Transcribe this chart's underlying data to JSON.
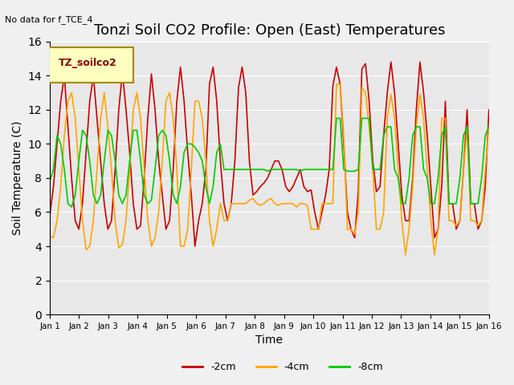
{
  "title": "Tonzi Soil CO2 Profile: Open (East) Temperatures",
  "subtitle": "No data for f_TCE_4",
  "xlabel": "Time",
  "ylabel": "Soil Temperature (C)",
  "ylim": [
    0,
    16
  ],
  "yticks": [
    0,
    2,
    4,
    6,
    8,
    10,
    12,
    14,
    16
  ],
  "xtick_labels": [
    "Jan 1",
    "Jan 2",
    "Jan 3",
    "Jan 4",
    "Jan 5",
    "Jan 6",
    "Jan 7",
    "Jan 8",
    "Jan 9",
    "Jan 10",
    "Jan 11",
    "Jan 12",
    "Jan 13",
    "Jan 14",
    "Jan 15",
    "Jan 16"
  ],
  "legend_label": "TZ_soilco2",
  "legend_entries": [
    "-2cm",
    "-4cm",
    "-8cm"
  ],
  "line_colors": [
    "#cc0000",
    "#ffa500",
    "#00cc00"
  ],
  "background_color": "#e8e8e8",
  "title_fontsize": 13,
  "label_fontsize": 10,
  "n_days": 15,
  "pts_per_day": 48,
  "red_2cm": [
    5.8,
    7.5,
    10.0,
    12.5,
    14.0,
    11.0,
    8.0,
    5.5,
    5.0,
    6.5,
    9.5,
    12.5,
    14.0,
    11.5,
    9.0,
    6.5,
    5.0,
    5.5,
    8.5,
    12.0,
    14.2,
    12.0,
    9.5,
    6.5,
    5.0,
    5.2,
    8.0,
    11.5,
    14.1,
    12.0,
    9.0,
    7.0,
    5.0,
    5.5,
    8.5,
    12.5,
    14.5,
    12.5,
    9.5,
    7.0,
    4.0,
    5.5,
    6.5,
    8.5,
    13.5,
    14.5,
    12.5,
    9.0,
    6.5,
    5.5,
    6.5,
    9.0,
    13.3,
    14.5,
    13.0,
    9.0,
    7.0,
    7.2,
    7.5,
    7.7,
    8.0,
    8.5,
    9.0,
    9.0,
    8.5,
    7.5,
    7.2,
    7.5,
    8.0,
    8.5,
    7.5,
    7.2,
    7.3,
    6.0,
    5.0,
    6.0,
    7.0,
    8.5,
    13.4,
    14.5,
    13.5,
    10.0,
    6.0,
    5.0,
    4.5,
    7.2,
    14.4,
    14.7,
    12.5,
    9.0,
    7.2,
    7.5,
    10.5,
    13.0,
    14.8,
    13.0,
    10.0,
    7.0,
    5.5,
    5.5,
    8.0,
    12.0,
    14.8,
    13.0,
    10.5,
    7.5,
    4.5,
    5.0,
    7.5,
    12.5,
    6.5,
    6.5,
    5.0,
    5.5,
    8.5,
    12.0,
    6.5,
    6.5,
    5.0,
    5.5,
    7.5,
    12.0
  ],
  "orange_4cm": [
    4.6,
    4.5,
    5.5,
    7.5,
    10.5,
    12.5,
    13.0,
    11.5,
    8.5,
    5.5,
    3.8,
    4.0,
    5.5,
    8.5,
    11.5,
    13.0,
    11.0,
    8.5,
    5.5,
    3.9,
    4.1,
    5.5,
    8.5,
    12.0,
    13.0,
    11.5,
    8.5,
    5.5,
    4.0,
    4.5,
    6.0,
    9.0,
    12.5,
    13.0,
    11.5,
    8.5,
    4.0,
    4.0,
    5.0,
    8.5,
    12.5,
    12.5,
    11.5,
    9.0,
    5.5,
    4.0,
    5.0,
    6.5,
    5.5,
    5.5,
    6.5,
    6.5,
    6.5,
    6.5,
    6.5,
    6.7,
    6.8,
    6.5,
    6.4,
    6.5,
    6.7,
    6.8,
    6.5,
    6.4,
    6.5,
    6.5,
    6.5,
    6.5,
    6.3,
    6.5,
    6.5,
    6.4,
    5.0,
    5.0,
    5.0,
    6.5,
    6.5,
    6.5,
    6.5,
    13.5,
    13.5,
    10.5,
    5.0,
    5.0,
    4.7,
    6.0,
    13.3,
    13.0,
    11.0,
    8.5,
    5.0,
    5.0,
    6.0,
    11.5,
    12.9,
    11.5,
    8.5,
    5.5,
    3.5,
    5.0,
    7.5,
    11.0,
    12.9,
    11.5,
    8.5,
    5.5,
    3.5,
    5.0,
    11.5,
    11.5,
    5.5,
    5.5,
    5.2,
    5.5,
    8.5,
    11.0,
    5.5,
    5.5,
    5.2,
    5.5,
    8.5,
    11.0
  ],
  "green_8cm": [
    7.8,
    8.5,
    10.5,
    10.0,
    8.5,
    6.5,
    6.3,
    7.0,
    9.0,
    10.8,
    10.5,
    9.0,
    7.0,
    6.5,
    7.0,
    9.0,
    10.8,
    10.5,
    9.0,
    7.0,
    6.5,
    7.0,
    9.0,
    10.8,
    10.8,
    9.0,
    7.0,
    6.5,
    6.7,
    8.5,
    10.5,
    10.8,
    10.5,
    9.0,
    7.0,
    6.5,
    7.5,
    9.5,
    10.0,
    10.0,
    9.8,
    9.5,
    9.0,
    7.5,
    6.5,
    7.5,
    9.5,
    10.0,
    8.5,
    8.5,
    8.5,
    8.5,
    8.5,
    8.5,
    8.5,
    8.5,
    8.5,
    8.5,
    8.5,
    8.5,
    8.4,
    8.5,
    8.5,
    8.5,
    8.5,
    8.5,
    8.5,
    8.5,
    8.5,
    8.4,
    8.5,
    8.5,
    8.5,
    8.5,
    8.5,
    8.5,
    8.5,
    8.5,
    8.5,
    11.5,
    11.5,
    8.5,
    8.4,
    8.4,
    8.4,
    8.5,
    11.5,
    11.5,
    11.5,
    8.5,
    8.5,
    8.5,
    10.5,
    11.0,
    11.0,
    8.5,
    8.0,
    6.5,
    6.5,
    8.0,
    10.5,
    11.0,
    11.0,
    8.5,
    8.0,
    6.5,
    6.5,
    8.0,
    10.5,
    11.0,
    6.5,
    6.5,
    6.5,
    8.0,
    10.5,
    11.0,
    6.5,
    6.5,
    6.5,
    8.0,
    10.5,
    11.0
  ]
}
